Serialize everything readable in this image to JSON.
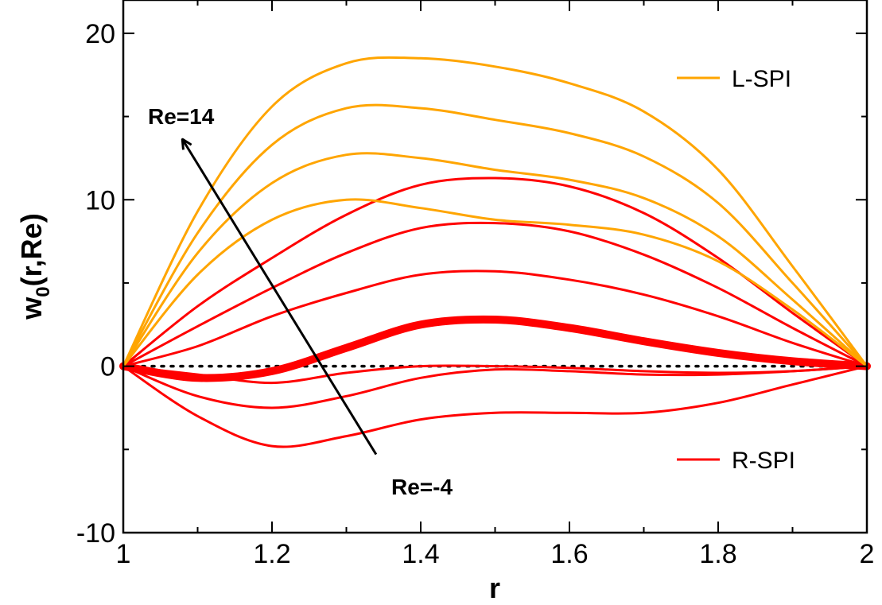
{
  "chart_data": {
    "type": "line",
    "xlabel": "r",
    "ylabel": "w",
    "ylabel_sub": "0",
    "ylabel_suffix": "(r,Re)",
    "xlim": [
      1,
      2
    ],
    "ylim": [
      -10,
      22
    ],
    "xticks": [
      1,
      1.2,
      1.4,
      1.6,
      1.8,
      2
    ],
    "xtick_labels": [
      "1",
      "1.2",
      "1.4",
      "1.6",
      "1.8",
      "2"
    ],
    "yticks": [
      -10,
      0,
      10,
      20
    ],
    "ytick_labels": [
      "-10",
      "0",
      "10",
      "20"
    ],
    "grid": false,
    "legend_position": "right",
    "legend": [
      {
        "label": "L-SPI",
        "color": "#FFA500"
      },
      {
        "label": "R-SPI",
        "color": "#FF0000"
      }
    ],
    "annotations": {
      "top": "Re=14",
      "bottom": "Re=-4"
    },
    "zero_line": {
      "y": 0,
      "style": "dotted"
    },
    "x": [
      1.0,
      1.1,
      1.2,
      1.3,
      1.4,
      1.5,
      1.6,
      1.7,
      1.8,
      1.9,
      2.0
    ],
    "series": [
      {
        "group": "R-SPI",
        "color": "#FF0000",
        "width": 3,
        "values": [
          0,
          -3.0,
          -4.8,
          -4.2,
          -3.2,
          -2.8,
          -2.8,
          -2.8,
          -2.2,
          -1.1,
          0
        ]
      },
      {
        "group": "R-SPI",
        "color": "#FF0000",
        "width": 3,
        "values": [
          0,
          -1.8,
          -2.5,
          -1.8,
          -0.7,
          -0.2,
          -0.3,
          -0.5,
          -0.5,
          -0.3,
          0
        ]
      },
      {
        "group": "R-SPI",
        "color": "#FF0000",
        "width": 3,
        "values": [
          0,
          -0.5,
          -1.0,
          -0.4,
          0.0,
          0.0,
          -0.1,
          -0.3,
          -0.4,
          -0.3,
          0
        ]
      },
      {
        "group": "R-SPI",
        "color": "#FF0000",
        "width": 10,
        "values": [
          0,
          -0.7,
          -0.3,
          1.1,
          2.5,
          2.8,
          2.3,
          1.5,
          0.8,
          0.3,
          0
        ]
      },
      {
        "group": "R-SPI",
        "color": "#FF0000",
        "width": 3,
        "values": [
          0,
          1.2,
          3.0,
          4.4,
          5.5,
          5.7,
          5.2,
          4.3,
          3.0,
          1.4,
          0
        ]
      },
      {
        "group": "R-SPI",
        "color": "#FF0000",
        "width": 3,
        "values": [
          0,
          2.4,
          4.7,
          6.8,
          8.3,
          8.6,
          8.1,
          6.7,
          4.7,
          2.3,
          0
        ]
      },
      {
        "group": "R-SPI",
        "color": "#FF0000",
        "width": 3,
        "values": [
          0,
          3.6,
          6.5,
          9.1,
          10.9,
          11.3,
          10.8,
          9.2,
          6.5,
          3.2,
          0
        ]
      },
      {
        "group": "L-SPI",
        "color": "#FFA500",
        "width": 3,
        "values": [
          0,
          5.5,
          8.8,
          10.0,
          9.5,
          8.8,
          8.5,
          7.9,
          6.3,
          3.4,
          0
        ]
      },
      {
        "group": "L-SPI",
        "color": "#FFA500",
        "width": 3,
        "values": [
          0,
          6.8,
          11.0,
          12.7,
          12.5,
          11.8,
          11.2,
          10.1,
          7.8,
          4.0,
          0
        ]
      },
      {
        "group": "L-SPI",
        "color": "#FFA500",
        "width": 3,
        "values": [
          0,
          8.0,
          13.3,
          15.5,
          15.5,
          14.8,
          14.0,
          12.6,
          9.8,
          5.0,
          0
        ]
      },
      {
        "group": "L-SPI",
        "color": "#FFA500",
        "width": 3,
        "values": [
          0,
          9.3,
          15.6,
          18.2,
          18.5,
          18.0,
          17.0,
          15.3,
          11.8,
          6.0,
          0
        ]
      }
    ],
    "arrow": {
      "from": [
        1.34,
        -5.3
      ],
      "to": [
        1.08,
        13.6
      ]
    }
  }
}
